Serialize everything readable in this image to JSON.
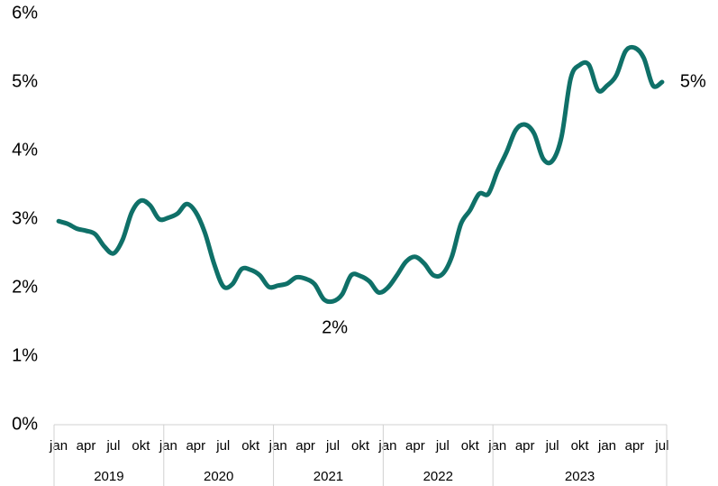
{
  "chart_data": {
    "type": "line",
    "categories": [
      "jan",
      null,
      null,
      "apr",
      null,
      null,
      "jul",
      null,
      null,
      "okt",
      null,
      null,
      "jan",
      null,
      null,
      "apr",
      null,
      null,
      "jul",
      null,
      null,
      "okt",
      null,
      null,
      "jan",
      null,
      null,
      "apr",
      null,
      null,
      "jul",
      null,
      null,
      "okt",
      null,
      null,
      "jan",
      null,
      null,
      "apr",
      null,
      null,
      "jul",
      null,
      null,
      "okt",
      null,
      null,
      "jan",
      null,
      null,
      "apr",
      null,
      null,
      "jul",
      null,
      null,
      "okt",
      null,
      null,
      "jan",
      null,
      null,
      "apr",
      null,
      null,
      "jul"
    ],
    "groups": [
      {
        "label": "2019",
        "span": 12
      },
      {
        "label": "2020",
        "span": 12
      },
      {
        "label": "2021",
        "span": 12
      },
      {
        "label": "2022",
        "span": 12
      },
      {
        "label": "2023",
        "span": 19
      }
    ],
    "series": [
      {
        "color": "#0f7068",
        "values": [
          2.97,
          2.93,
          2.86,
          2.83,
          2.78,
          2.6,
          2.5,
          2.7,
          3.1,
          3.27,
          3.2,
          3.0,
          3.02,
          3.08,
          3.22,
          3.1,
          2.8,
          2.35,
          2.02,
          2.05,
          2.27,
          2.26,
          2.18,
          2.01,
          2.03,
          2.06,
          2.15,
          2.13,
          2.05,
          1.83,
          1.8,
          1.9,
          2.18,
          2.17,
          2.09,
          1.93,
          2.0,
          2.18,
          2.38,
          2.45,
          2.35,
          2.18,
          2.2,
          2.45,
          2.93,
          3.13,
          3.37,
          3.37,
          3.7,
          3.98,
          4.3,
          4.38,
          4.25,
          3.88,
          3.85,
          4.2,
          5.05,
          5.25,
          5.25,
          4.88,
          4.95,
          5.1,
          5.45,
          5.5,
          5.35,
          4.95,
          5.0
        ]
      }
    ],
    "annotations": [
      {
        "text": "2%",
        "index": 30,
        "value": 1.8
      },
      {
        "text": "5%",
        "index": 66,
        "value": 5.0
      }
    ],
    "ylim": [
      0,
      6
    ],
    "yticks": [
      {
        "value": 0,
        "label": "0%"
      },
      {
        "value": 1,
        "label": "1%"
      },
      {
        "value": 2,
        "label": "2%"
      },
      {
        "value": 3,
        "label": "3%"
      },
      {
        "value": 4,
        "label": "4%"
      },
      {
        "value": 5,
        "label": "5%"
      },
      {
        "value": 6,
        "label": "6%"
      }
    ]
  }
}
